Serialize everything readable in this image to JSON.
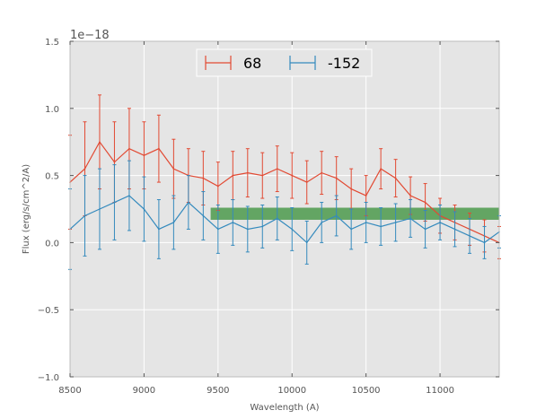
{
  "chart_data": {
    "type": "line",
    "title": "",
    "xlabel": "Wavelength (A)",
    "ylabel": "Flux (erg/s/cm^2/A)",
    "y_offset_label": "1e−18",
    "xlim": [
      8500,
      11400
    ],
    "ylim": [
      -1.0,
      1.5
    ],
    "xticks": [
      8500,
      9000,
      9500,
      10000,
      10500,
      11000
    ],
    "xtick_labels": [
      "8500",
      "9000",
      "9500",
      "10000",
      "10500",
      "11000"
    ],
    "yticks": [
      -1.0,
      -0.5,
      0.0,
      0.5,
      1.0,
      1.5
    ],
    "ytick_labels": [
      "−1.0",
      "−0.5",
      "0.0",
      "0.5",
      "1.0",
      "1.5"
    ],
    "grid": true,
    "legend_position": "top-center",
    "band": {
      "x": [
        9450,
        11400
      ],
      "y": [
        0.17,
        0.26
      ],
      "color": "#4c9a4c"
    },
    "series": [
      {
        "name": "68",
        "color": "#e24a33",
        "x": [
          8500,
          8600,
          8700,
          8800,
          8900,
          9000,
          9100,
          9200,
          9300,
          9400,
          9500,
          9600,
          9700,
          9800,
          9900,
          10000,
          10100,
          10200,
          10300,
          10400,
          10500,
          10600,
          10700,
          10800,
          10900,
          11000,
          11100,
          11200,
          11300,
          11400
        ],
        "y": [
          0.45,
          0.55,
          0.75,
          0.6,
          0.7,
          0.65,
          0.7,
          0.55,
          0.5,
          0.48,
          0.42,
          0.5,
          0.52,
          0.5,
          0.55,
          0.5,
          0.45,
          0.52,
          0.48,
          0.4,
          0.35,
          0.55,
          0.48,
          0.35,
          0.3,
          0.2,
          0.15,
          0.1,
          0.05,
          0.0
        ],
        "err": [
          0.35,
          0.35,
          0.35,
          0.3,
          0.3,
          0.25,
          0.25,
          0.22,
          0.2,
          0.2,
          0.18,
          0.18,
          0.18,
          0.17,
          0.17,
          0.17,
          0.16,
          0.16,
          0.16,
          0.15,
          0.15,
          0.15,
          0.14,
          0.14,
          0.14,
          0.13,
          0.13,
          0.12,
          0.12,
          0.12
        ]
      },
      {
        "name": "-152",
        "color": "#348abd",
        "x": [
          8500,
          8600,
          8700,
          8800,
          8900,
          9000,
          9100,
          9200,
          9300,
          9400,
          9500,
          9600,
          9700,
          9800,
          9900,
          10000,
          10100,
          10200,
          10300,
          10400,
          10500,
          10600,
          10700,
          10800,
          10900,
          11000,
          11100,
          11200,
          11300,
          11400
        ],
        "y": [
          0.1,
          0.2,
          0.25,
          0.3,
          0.35,
          0.25,
          0.1,
          0.15,
          0.3,
          0.2,
          0.1,
          0.15,
          0.1,
          0.12,
          0.18,
          0.1,
          0.0,
          0.15,
          0.2,
          0.1,
          0.15,
          0.12,
          0.15,
          0.18,
          0.1,
          0.15,
          0.1,
          0.05,
          0.0,
          0.08
        ],
        "err": [
          0.3,
          0.3,
          0.3,
          0.28,
          0.26,
          0.24,
          0.22,
          0.2,
          0.2,
          0.18,
          0.18,
          0.17,
          0.17,
          0.16,
          0.16,
          0.16,
          0.16,
          0.15,
          0.15,
          0.15,
          0.15,
          0.14,
          0.14,
          0.14,
          0.14,
          0.13,
          0.13,
          0.13,
          0.12,
          0.12
        ]
      }
    ]
  }
}
